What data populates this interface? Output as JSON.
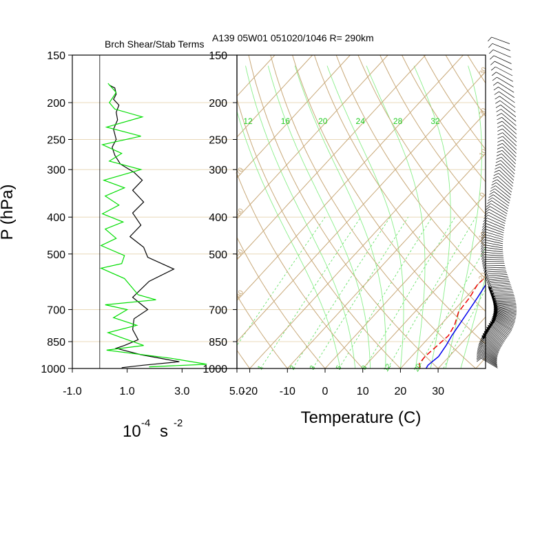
{
  "chart_data": [
    {
      "type": "line",
      "title": "Brch Shear/Stab Terms",
      "ylabel": "P (hPa)",
      "xlabel_base": "10",
      "xlabel_exp": "-4",
      "xlabel_unit": "s",
      "xlabel_unit_exp": "-2",
      "xlim": [
        -1.0,
        5.0
      ],
      "x_ticks": [
        "-1.0",
        "1.0",
        "3.0",
        "5.0"
      ],
      "x_tick_values": [
        -1.0,
        1.0,
        3.0,
        5.0
      ],
      "ylim": [
        1000,
        150
      ],
      "y_scale": "log",
      "y_ticks": [
        "150",
        "200",
        "250",
        "300",
        "400",
        "500",
        "700",
        "850",
        "1000"
      ],
      "y_tick_values": [
        150,
        200,
        250,
        300,
        400,
        500,
        700,
        850,
        1000
      ],
      "zero_line": 0.0,
      "series": [
        {
          "color": "#000000",
          "points": [
            [
              0.35,
              180
            ],
            [
              0.55,
              183
            ],
            [
              0.6,
              190
            ],
            [
              0.5,
              196
            ],
            [
              0.7,
              203
            ],
            [
              0.6,
              212
            ],
            [
              0.65,
              222
            ],
            [
              0.5,
              235
            ],
            [
              0.6,
              250
            ],
            [
              0.45,
              262
            ],
            [
              0.55,
              275
            ],
            [
              0.75,
              290
            ],
            [
              1.25,
              305
            ],
            [
              1.55,
              320
            ],
            [
              1.2,
              340
            ],
            [
              1.6,
              365
            ],
            [
              1.2,
              390
            ],
            [
              1.5,
              420
            ],
            [
              1.1,
              450
            ],
            [
              1.6,
              480
            ],
            [
              1.75,
              510
            ],
            [
              2.7,
              548
            ],
            [
              1.8,
              590
            ],
            [
              1.2,
              650
            ],
            [
              1.75,
              700
            ],
            [
              1.25,
              740
            ],
            [
              1.2,
              790
            ],
            [
              1.4,
              840
            ],
            [
              0.9,
              870
            ],
            [
              0.6,
              885
            ],
            [
              1.5,
              920
            ],
            [
              2.9,
              960
            ],
            [
              1.6,
              980
            ],
            [
              0.8,
              995
            ]
          ]
        },
        {
          "color": "#00dd00",
          "points": [
            [
              0.3,
              178
            ],
            [
              0.6,
              188
            ],
            [
              0.35,
              200
            ],
            [
              0.55,
              208
            ],
            [
              1.55,
              218
            ],
            [
              0.25,
              232
            ],
            [
              1.5,
              245
            ],
            [
              0.1,
              258
            ],
            [
              0.8,
              272
            ],
            [
              0.35,
              285
            ],
            [
              1.5,
              300
            ],
            [
              0.15,
              320
            ],
            [
              0.9,
              335
            ],
            [
              0.2,
              352
            ],
            [
              0.7,
              372
            ],
            [
              0.1,
              392
            ],
            [
              0.85,
              412
            ],
            [
              0.2,
              430
            ],
            [
              0.6,
              455
            ],
            [
              0.05,
              475
            ],
            [
              0.9,
              505
            ],
            [
              0.8,
              530
            ],
            [
              0.05,
              545
            ],
            [
              0.9,
              580
            ],
            [
              1.4,
              640
            ],
            [
              2.05,
              660
            ],
            [
              0.2,
              680
            ],
            [
              1.0,
              700
            ],
            [
              0.5,
              735
            ],
            [
              1.35,
              770
            ],
            [
              0.3,
              805
            ],
            [
              0.8,
              830
            ],
            [
              1.6,
              870
            ],
            [
              0.25,
              895
            ],
            [
              2.6,
              940
            ],
            [
              3.9,
              975
            ],
            [
              1.8,
              990
            ]
          ]
        }
      ]
    },
    {
      "type": "line",
      "title": "A139 05W01 051020/1046 R= 290km",
      "xlabel": "Temperature (C)",
      "x_ticks": [
        "-20",
        "-10",
        "0",
        "10",
        "20",
        "30"
      ],
      "x_tick_values": [
        -20,
        -10,
        0,
        10,
        20,
        30
      ],
      "xlim": [
        -24,
        42
      ],
      "ylim": [
        1000,
        150
      ],
      "y_scale": "log",
      "y_ticks": [
        "150",
        "200",
        "250",
        "300",
        "400",
        "500",
        "700",
        "850",
        "1000"
      ],
      "y_tick_values": [
        150,
        200,
        250,
        300,
        400,
        500,
        700,
        850,
        1000
      ],
      "skew": "skew-T",
      "isotherm_labels": [
        "-70",
        "-60",
        "-50",
        "-40",
        "-30",
        "-20",
        "-10",
        "0",
        "10",
        "20"
      ],
      "isotherm_label_values": [
        -70,
        -60,
        -50,
        -40,
        -30,
        -20,
        -10,
        0,
        10,
        20
      ],
      "theta_labels": [
        "50",
        "60",
        "70",
        "80",
        "90",
        "100",
        "110",
        "120",
        "130",
        "140",
        "150"
      ],
      "theta_label_values": [
        50,
        60,
        70,
        80,
        90,
        100,
        110,
        120,
        130,
        140,
        150
      ],
      "mixing_ratio_labels": [
        "1",
        "2",
        "3",
        "5",
        "8",
        "12",
        "20"
      ],
      "mixing_ratio_label_values": [
        1,
        2,
        3,
        5,
        8,
        12,
        20
      ],
      "theta_e_labels": [
        "12",
        "16",
        "20",
        "24",
        "28",
        "32"
      ],
      "theta_e_label_values": [
        12,
        16,
        20,
        24,
        28,
        32
      ],
      "grid": true,
      "series": [
        {
          "color": "#0000ee",
          "dash": "solid",
          "points": [
            [
              -1.2,
              175
            ],
            [
              2.4,
              200
            ],
            [
              5.4,
              225
            ],
            [
              8.3,
              250
            ],
            [
              10.1,
              272
            ],
            [
              11.7,
              287
            ],
            [
              12.1,
              303
            ],
            [
              13.0,
              325
            ],
            [
              15.7,
              355
            ],
            [
              17.3,
              385
            ],
            [
              18.1,
              420
            ],
            [
              20.0,
              470
            ],
            [
              20.7,
              520
            ],
            [
              21.9,
              590
            ],
            [
              23.1,
              650
            ],
            [
              23.9,
              700
            ],
            [
              24.8,
              760
            ],
            [
              25.6,
              820
            ],
            [
              26.5,
              870
            ],
            [
              27.2,
              930
            ],
            [
              26.5,
              980
            ],
            [
              26.8,
              1000
            ]
          ]
        },
        {
          "color": "#ee0000",
          "dash": "dashed",
          "points": [
            [
              -10.4,
              202
            ],
            [
              -8.5,
              222
            ],
            [
              -3.2,
              243
            ],
            [
              4.0,
              255
            ],
            [
              5.4,
              270
            ],
            [
              5.4,
              285
            ],
            [
              8.8,
              298
            ],
            [
              11.0,
              310
            ],
            [
              9.3,
              325
            ],
            [
              12.8,
              345
            ],
            [
              13.9,
              370
            ],
            [
              15.6,
              392
            ],
            [
              17.4,
              410
            ],
            [
              19.0,
              440
            ],
            [
              19.6,
              480
            ],
            [
              19.3,
              530
            ],
            [
              20.6,
              560
            ],
            [
              19.9,
              600
            ],
            [
              21.0,
              650
            ],
            [
              21.6,
              710
            ],
            [
              23.8,
              770
            ],
            [
              24.7,
              820
            ],
            [
              24.2,
              870
            ],
            [
              23.6,
              930
            ],
            [
              23.8,
              970
            ],
            [
              25.2,
              1000
            ]
          ]
        }
      ]
    },
    {
      "type": "wind-barbs",
      "color": "#000000"
    }
  ]
}
